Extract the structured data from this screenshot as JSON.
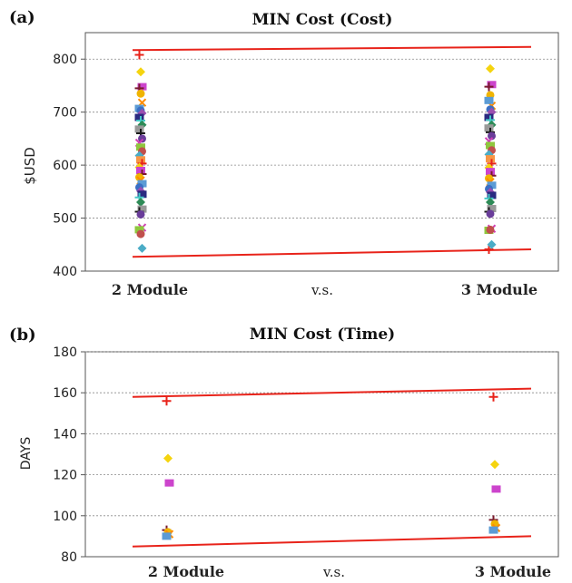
{
  "chart_data": [
    {
      "panel_label": "(a)",
      "type": "scatter",
      "title": "MIN Cost  (Cost)",
      "xlabel": "",
      "ylabel": "$USD",
      "ylim": [
        400,
        850
      ],
      "yticks": [
        400,
        500,
        600,
        700,
        800
      ],
      "categories": [
        "2 Module",
        "3 Module"
      ],
      "category_separator": "v.s.",
      "grid": "horizontal dotted",
      "series": [
        {
          "values": [
            808,
            441
          ]
        },
        {
          "values": [
            776,
            782
          ]
        },
        {
          "values": [
            748,
            752
          ]
        },
        {
          "values": [
            745,
            748
          ]
        },
        {
          "values": [
            735,
            732
          ]
        },
        {
          "values": [
            718,
            712
          ]
        },
        {
          "values": [
            707,
            722
          ]
        },
        {
          "values": [
            703,
            705
          ]
        },
        {
          "values": [
            698,
            700
          ]
        },
        {
          "values": [
            690,
            690
          ]
        },
        {
          "values": [
            684,
            685
          ]
        },
        {
          "values": [
            676,
            676
          ]
        },
        {
          "values": [
            668,
            670
          ]
        },
        {
          "values": [
            660,
            662
          ]
        },
        {
          "values": [
            650,
            655
          ]
        },
        {
          "values": [
            642,
            645
          ]
        },
        {
          "values": [
            634,
            637
          ]
        },
        {
          "values": [
            626,
            628
          ]
        },
        {
          "values": [
            618,
            620
          ]
        },
        {
          "values": [
            610,
            612
          ]
        },
        {
          "values": [
            603,
            603
          ]
        },
        {
          "values": [
            596,
            595
          ]
        },
        {
          "values": [
            590,
            588
          ]
        },
        {
          "values": [
            583,
            580
          ]
        },
        {
          "values": [
            577,
            575
          ]
        },
        {
          "values": [
            571,
            568
          ]
        },
        {
          "values": [
            565,
            562
          ]
        },
        {
          "values": [
            558,
            555
          ]
        },
        {
          "values": [
            551,
            549
          ]
        },
        {
          "values": [
            545,
            543
          ]
        },
        {
          "values": [
            539,
            537
          ]
        },
        {
          "values": [
            530,
            530
          ]
        },
        {
          "values": [
            517,
            518
          ]
        },
        {
          "values": [
            512,
            512
          ]
        },
        {
          "values": [
            507,
            508
          ]
        },
        {
          "values": [
            482,
            480
          ]
        },
        {
          "values": [
            478,
            477
          ]
        },
        {
          "values": [
            470,
            478
          ]
        },
        {
          "values": [
            443,
            450
          ]
        }
      ],
      "reference_lines": [
        {
          "from": [
            1,
            817
          ],
          "to": [
            2,
            823
          ]
        },
        {
          "from": [
            1,
            427
          ],
          "to": [
            2,
            441
          ]
        }
      ]
    },
    {
      "panel_label": "(b)",
      "type": "scatter",
      "title": "MIN Cost (Time)",
      "xlabel": "",
      "ylabel": "DAYS",
      "ylim": [
        80,
        180
      ],
      "yticks": [
        80,
        100,
        120,
        140,
        160,
        180
      ],
      "categories": [
        "2 Module",
        "3 Module"
      ],
      "category_separator": "v.s.",
      "grid": "horizontal dotted",
      "series": [
        {
          "values": [
            156,
            158
          ]
        },
        {
          "values": [
            128,
            125
          ]
        },
        {
          "values": [
            116,
            113
          ]
        },
        {
          "values": [
            93,
            98
          ]
        },
        {
          "values": [
            92,
            96
          ]
        },
        {
          "values": [
            91,
            94
          ]
        },
        {
          "values": [
            90,
            93
          ]
        }
      ],
      "reference_lines": [
        {
          "from": [
            1,
            158
          ],
          "to": [
            2,
            162
          ]
        },
        {
          "from": [
            1,
            85
          ],
          "to": [
            2,
            90
          ]
        }
      ]
    }
  ],
  "styles": {
    "trend_line_color": "#e8231a",
    "grid_color": "#8a8a8a",
    "axis_color": "#555555",
    "marker_palette": [
      "#e8231a",
      "#f5d40f",
      "#cc44cc",
      "#7a1b2e",
      "#f0b400",
      "#ff8c00",
      "#5b9bd5",
      "#3a6fc4",
      "#9b4fb0",
      "#2a2a80",
      "#44c8c8",
      "#2e8b57",
      "#999999",
      "#1a1a1a",
      "#6a3d9a",
      "#d13fb5",
      "#8fc73e",
      "#c0504d",
      "#4bacc6",
      "#f79646"
    ]
  }
}
